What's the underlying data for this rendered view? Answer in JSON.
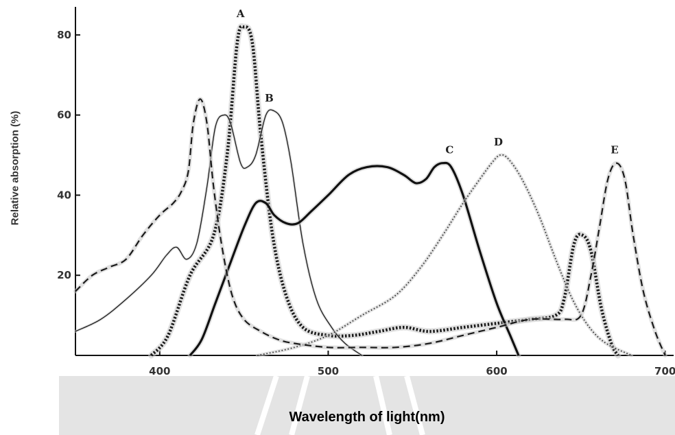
{
  "chart_data": {
    "type": "line",
    "title": "",
    "xlabel": "Wavelength of light(nm)",
    "ylabel": "Relative absorption (%)",
    "xlim": [
      350,
      705
    ],
    "ylim": [
      0,
      87
    ],
    "x_ticks": [
      "400",
      "500",
      "600",
      "700"
    ],
    "x_tick_values": [
      400,
      500,
      600,
      700
    ],
    "y_ticks": [
      "20",
      "40",
      "60",
      "80"
    ],
    "y_tick_values": [
      20,
      40,
      60,
      80
    ],
    "grid": false,
    "series": [
      {
        "name": "A",
        "style": "heavy-dotted",
        "label_x": 448,
        "points": [
          [
            395,
            0
          ],
          [
            405,
            5
          ],
          [
            418,
            20
          ],
          [
            432,
            30
          ],
          [
            440,
            50
          ],
          [
            446,
            78
          ],
          [
            450,
            82
          ],
          [
            455,
            78
          ],
          [
            460,
            55
          ],
          [
            467,
            30
          ],
          [
            475,
            15
          ],
          [
            485,
            7
          ],
          [
            500,
            5
          ],
          [
            515,
            5
          ],
          [
            530,
            6
          ],
          [
            545,
            7
          ],
          [
            560,
            6
          ],
          [
            580,
            7
          ],
          [
            600,
            8
          ],
          [
            620,
            9
          ],
          [
            635,
            10
          ],
          [
            640,
            14
          ],
          [
            646,
            28
          ],
          [
            651,
            30
          ],
          [
            656,
            26
          ],
          [
            662,
            12
          ],
          [
            668,
            3
          ],
          [
            672,
            0
          ]
        ]
      },
      {
        "name": "B",
        "style": "thin-solid",
        "label_x": 465,
        "points": [
          [
            350,
            6
          ],
          [
            365,
            9
          ],
          [
            380,
            14
          ],
          [
            395,
            20
          ],
          [
            404,
            25
          ],
          [
            410,
            27
          ],
          [
            416,
            24
          ],
          [
            422,
            28
          ],
          [
            428,
            42
          ],
          [
            433,
            57
          ],
          [
            438,
            60
          ],
          [
            442,
            58
          ],
          [
            448,
            48
          ],
          [
            452,
            47
          ],
          [
            457,
            50
          ],
          [
            463,
            60
          ],
          [
            468,
            61
          ],
          [
            473,
            58
          ],
          [
            478,
            48
          ],
          [
            485,
            28
          ],
          [
            493,
            14
          ],
          [
            502,
            7
          ],
          [
            510,
            3
          ],
          [
            520,
            0
          ]
        ]
      },
      {
        "name": "C",
        "style": "thick-solid",
        "label_x": 572,
        "points": [
          [
            418,
            0
          ],
          [
            425,
            4
          ],
          [
            433,
            13
          ],
          [
            441,
            22
          ],
          [
            450,
            32
          ],
          [
            457,
            38
          ],
          [
            463,
            38
          ],
          [
            468,
            35
          ],
          [
            475,
            33
          ],
          [
            482,
            33
          ],
          [
            490,
            36
          ],
          [
            500,
            40
          ],
          [
            512,
            45
          ],
          [
            523,
            47
          ],
          [
            535,
            47
          ],
          [
            545,
            45
          ],
          [
            552,
            43
          ],
          [
            558,
            44
          ],
          [
            563,
            47
          ],
          [
            568,
            48
          ],
          [
            573,
            47
          ],
          [
            580,
            40
          ],
          [
            590,
            26
          ],
          [
            600,
            13
          ],
          [
            608,
            5
          ],
          [
            613,
            0
          ]
        ]
      },
      {
        "name": "D",
        "style": "fine-dotted",
        "label_x": 601,
        "points": [
          [
            458,
            0
          ],
          [
            480,
            2
          ],
          [
            500,
            5
          ],
          [
            520,
            10
          ],
          [
            540,
            15
          ],
          [
            555,
            22
          ],
          [
            568,
            30
          ],
          [
            580,
            38
          ],
          [
            590,
            44
          ],
          [
            597,
            48
          ],
          [
            602,
            50
          ],
          [
            607,
            49
          ],
          [
            615,
            44
          ],
          [
            625,
            35
          ],
          [
            635,
            24
          ],
          [
            645,
            14
          ],
          [
            655,
            7
          ],
          [
            665,
            3
          ],
          [
            680,
            0
          ]
        ]
      },
      {
        "name": "E",
        "style": "dashed",
        "label_x": 670,
        "points": [
          [
            350,
            16
          ],
          [
            360,
            20
          ],
          [
            370,
            22
          ],
          [
            380,
            24
          ],
          [
            390,
            30
          ],
          [
            400,
            35
          ],
          [
            408,
            38
          ],
          [
            413,
            41
          ],
          [
            417,
            46
          ],
          [
            420,
            58
          ],
          [
            424,
            64
          ],
          [
            428,
            58
          ],
          [
            432,
            42
          ],
          [
            437,
            27
          ],
          [
            443,
            15
          ],
          [
            450,
            9
          ],
          [
            460,
            6
          ],
          [
            470,
            4
          ],
          [
            480,
            3
          ],
          [
            500,
            2
          ],
          [
            520,
            2
          ],
          [
            540,
            2
          ],
          [
            560,
            3
          ],
          [
            580,
            5
          ],
          [
            600,
            7
          ],
          [
            620,
            9
          ],
          [
            640,
            9
          ],
          [
            650,
            10
          ],
          [
            656,
            20
          ],
          [
            661,
            32
          ],
          [
            666,
            44
          ],
          [
            671,
            48
          ],
          [
            676,
            44
          ],
          [
            681,
            30
          ],
          [
            687,
            16
          ],
          [
            694,
            6
          ],
          [
            700,
            0
          ]
        ]
      }
    ]
  }
}
